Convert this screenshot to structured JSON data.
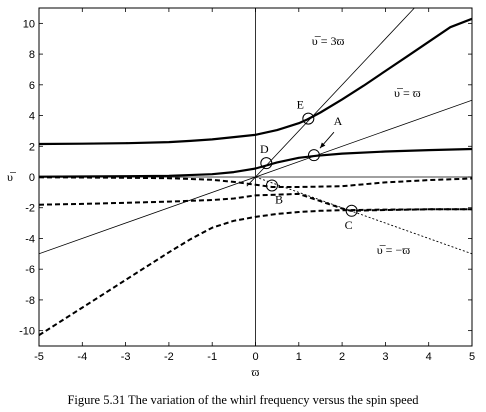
{
  "chart_data": {
    "type": "line",
    "title": "",
    "caption": "Figure 5.31 The variation of the whirl frequency versus the spin speed",
    "xlabel": "ϖ",
    "ylabel": "υ̅",
    "xlim": [
      -5,
      5
    ],
    "ylim": [
      -11,
      11
    ],
    "xticks": [
      -5,
      -4,
      -3,
      -2,
      -1,
      0,
      1,
      2,
      3,
      4,
      5
    ],
    "yticks": [
      -10,
      -8,
      -6,
      -4,
      -2,
      0,
      2,
      4,
      6,
      8,
      10
    ],
    "grid": false,
    "legend": "none",
    "series": [
      {
        "style": "solid-thick",
        "x": [
          -5,
          -4,
          -3,
          -2,
          -1.5,
          -1,
          -0.5,
          0,
          0.5,
          1,
          1.2,
          1.5,
          2,
          2.5,
          3,
          3.5,
          4,
          4.5,
          5
        ],
        "y": [
          2.15,
          2.17,
          2.2,
          2.27,
          2.35,
          2.45,
          2.6,
          2.75,
          3.05,
          3.5,
          3.75,
          4.2,
          5.05,
          5.95,
          6.9,
          7.85,
          8.8,
          9.75,
          10.3
        ]
      },
      {
        "style": "solid-thick",
        "x": [
          -5,
          -4,
          -3,
          -2,
          -1,
          -0.5,
          0,
          0.25,
          0.5,
          1,
          1.4,
          2,
          3,
          4,
          5
        ],
        "y": [
          0.02,
          0.03,
          0.05,
          0.08,
          0.18,
          0.32,
          0.55,
          0.75,
          0.95,
          1.25,
          1.38,
          1.52,
          1.66,
          1.75,
          1.82
        ]
      },
      {
        "style": "dashed-thick",
        "x": [
          -5,
          -4,
          -3,
          -2,
          -1,
          -0.5,
          0,
          0.38,
          1,
          2,
          3,
          4,
          5
        ],
        "y": [
          -0.02,
          -0.03,
          -0.05,
          -0.08,
          -0.18,
          -0.32,
          -0.5,
          -0.65,
          -0.65,
          -0.6,
          -0.35,
          -0.2,
          -0.1
        ]
      },
      {
        "style": "dashed-thick",
        "x": [
          -5,
          -4,
          -3,
          -2,
          -1,
          -0.5,
          0,
          1,
          2,
          2.2,
          3,
          4,
          5
        ],
        "y": [
          -1.8,
          -1.75,
          -1.68,
          -1.6,
          -1.5,
          -1.4,
          -1.2,
          -1.1,
          -2.05,
          -2.2,
          -2.15,
          -2.1,
          -2.1
        ]
      },
      {
        "style": "dashed-thick",
        "x": [
          -5,
          -4.5,
          -4,
          -3.5,
          -3,
          -2.5,
          -2,
          -1.5,
          -1,
          -0.5,
          0,
          0.5,
          1,
          1.5,
          2,
          2.5,
          3,
          4,
          5
        ],
        "y": [
          -10.3,
          -9.4,
          -8.5,
          -7.6,
          -6.7,
          -5.8,
          -4.9,
          -4.05,
          -3.3,
          -2.85,
          -2.6,
          -2.4,
          -2.28,
          -2.2,
          -2.16,
          -2.14,
          -2.12,
          -2.1,
          -2.1
        ]
      },
      {
        "style": "solid-thin",
        "name": "υ̅ = 3ϖ",
        "x": [
          -0.2,
          3.67
        ],
        "y": [
          -0.6,
          11
        ]
      },
      {
        "style": "solid-thin",
        "name": "υ̅ = ϖ",
        "x": [
          -5,
          5
        ],
        "y": [
          -5,
          5
        ]
      },
      {
        "style": "dotted-thin",
        "name": "υ̅ = −ϖ",
        "x": [
          0,
          5
        ],
        "y": [
          0,
          -5
        ]
      },
      {
        "style": "solid-thin",
        "x": [
          -5,
          5
        ],
        "y": [
          0,
          0
        ]
      }
    ],
    "points": [
      {
        "label": "A",
        "x": 1.35,
        "y": 1.42
      },
      {
        "label": "B",
        "x": 0.38,
        "y": -0.55
      },
      {
        "label": "C",
        "x": 2.22,
        "y": -2.2
      },
      {
        "label": "D",
        "x": 0.25,
        "y": 0.9
      },
      {
        "label": "E",
        "x": 1.22,
        "y": 3.8
      }
    ],
    "annotations": [
      {
        "text": "υ̅ = 3ϖ",
        "x": 1.3,
        "y": 8.6
      },
      {
        "text": "υ̅ = ϖ",
        "x": 3.2,
        "y": 5.2
      },
      {
        "text": "υ̅ = −ϖ",
        "x": 2.8,
        "y": -5.0
      }
    ]
  }
}
